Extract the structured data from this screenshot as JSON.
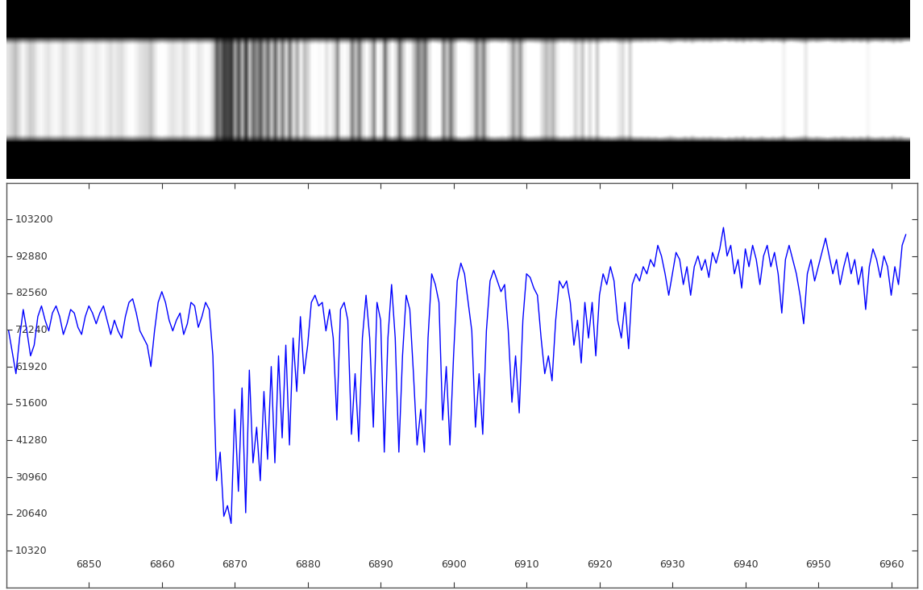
{
  "chart_data": {
    "type": "line",
    "color": "#0000ff",
    "grid": false,
    "xlim": [
      6838.7,
      6963.6
    ],
    "xticks": [
      6850,
      6860,
      6870,
      6880,
      6890,
      6900,
      6910,
      6920,
      6930,
      6940,
      6950,
      6960
    ],
    "ylim": [
      0,
      113500
    ],
    "yticks": [
      10320,
      20640,
      30960,
      41280,
      51600,
      61920,
      72240,
      82560,
      92880,
      103200
    ],
    "x": [
      6839,
      6839.5,
      6840,
      6840.5,
      6841,
      6841.5,
      6842,
      6842.5,
      6843,
      6843.5,
      6844,
      6844.5,
      6845,
      6845.5,
      6846,
      6846.5,
      6847,
      6847.5,
      6848,
      6848.5,
      6849,
      6849.5,
      6850,
      6850.5,
      6851,
      6851.5,
      6852,
      6852.5,
      6853,
      6853.5,
      6854,
      6854.5,
      6855,
      6855.5,
      6856,
      6856.5,
      6857,
      6857.5,
      6858,
      6858.5,
      6859,
      6859.5,
      6860,
      6860.5,
      6861,
      6861.5,
      6862,
      6862.5,
      6863,
      6863.5,
      6864,
      6864.5,
      6865,
      6865.5,
      6866,
      6866.5,
      6867,
      6867.5,
      6868,
      6868.5,
      6869,
      6869.5,
      6870,
      6870.5,
      6871,
      6871.5,
      6872,
      6872.5,
      6873,
      6873.5,
      6874,
      6874.5,
      6875,
      6875.5,
      6876,
      6876.5,
      6877,
      6877.5,
      6878,
      6878.5,
      6879,
      6879.5,
      6880,
      6880.5,
      6881,
      6881.5,
      6882,
      6882.5,
      6883,
      6883.5,
      6884,
      6884.5,
      6885,
      6885.5,
      6886,
      6886.5,
      6887,
      6887.5,
      6888,
      6888.5,
      6889,
      6889.5,
      6890,
      6890.5,
      6891,
      6891.5,
      6892,
      6892.5,
      6893,
      6893.5,
      6894,
      6894.5,
      6895,
      6895.5,
      6896,
      6896.5,
      6897,
      6897.5,
      6898,
      6898.5,
      6899,
      6899.5,
      6900,
      6900.5,
      6901,
      6901.5,
      6902,
      6902.5,
      6903,
      6903.5,
      6904,
      6904.5,
      6905,
      6905.5,
      6906,
      6906.5,
      6907,
      6907.5,
      6908,
      6908.5,
      6909,
      6909.5,
      6910,
      6910.5,
      6911,
      6911.5,
      6912,
      6912.5,
      6913,
      6913.5,
      6914,
      6914.5,
      6915,
      6915.5,
      6916,
      6916.5,
      6917,
      6917.5,
      6918,
      6918.5,
      6919,
      6919.5,
      6920,
      6920.5,
      6921,
      6921.5,
      6922,
      6922.5,
      6923,
      6923.5,
      6924,
      6924.5,
      6925,
      6925.5,
      6926,
      6926.5,
      6927,
      6927.5,
      6928,
      6928.5,
      6929,
      6929.5,
      6930,
      6930.5,
      6931,
      6931.5,
      6932,
      6932.5,
      6933,
      6933.5,
      6934,
      6934.5,
      6935,
      6935.5,
      6936,
      6936.5,
      6937,
      6937.5,
      6938,
      6938.5,
      6939,
      6939.5,
      6940,
      6940.5,
      6941,
      6941.5,
      6942,
      6942.5,
      6943,
      6943.5,
      6944,
      6944.5,
      6945,
      6945.5,
      6946,
      6946.5,
      6947,
      6947.5,
      6948,
      6948.5,
      6949,
      6949.5,
      6950,
      6950.5,
      6951,
      6951.5,
      6952,
      6952.5,
      6953,
      6953.5,
      6954,
      6954.5,
      6955,
      6955.5,
      6956,
      6956.5,
      6957,
      6957.5,
      6958,
      6958.5,
      6959,
      6959.5,
      6960,
      6960.5,
      6961,
      6961.5,
      6962
    ],
    "values": [
      72000,
      66000,
      60000,
      70000,
      78000,
      72000,
      65000,
      68000,
      76000,
      79000,
      75000,
      72000,
      77000,
      79000,
      76000,
      71000,
      74000,
      78000,
      77000,
      73000,
      71000,
      76000,
      79000,
      77000,
      74000,
      77000,
      79000,
      75000,
      71000,
      75000,
      72000,
      70000,
      76000,
      80000,
      81000,
      77000,
      72000,
      70000,
      68000,
      62000,
      72000,
      80000,
      83000,
      80000,
      75000,
      72000,
      75000,
      77000,
      71000,
      74000,
      80000,
      79000,
      73000,
      76000,
      80000,
      78000,
      65000,
      30000,
      38000,
      20000,
      23000,
      18000,
      50000,
      27000,
      56000,
      21000,
      61000,
      35000,
      45000,
      30000,
      55000,
      36000,
      62000,
      35000,
      65000,
      42000,
      68000,
      40000,
      70000,
      55000,
      76000,
      60000,
      68000,
      80000,
      82000,
      79000,
      80000,
      72000,
      78000,
      70000,
      47000,
      78000,
      80000,
      75000,
      43000,
      60000,
      41000,
      70000,
      82000,
      70000,
      45000,
      80000,
      75000,
      38000,
      70000,
      85000,
      70000,
      38000,
      65000,
      82000,
      78000,
      60000,
      40000,
      50000,
      38000,
      70000,
      88000,
      85000,
      80000,
      47000,
      62000,
      40000,
      65000,
      86000,
      91000,
      88000,
      80000,
      72000,
      45000,
      60000,
      43000,
      72000,
      86000,
      89000,
      86000,
      83000,
      85000,
      72000,
      52000,
      65000,
      49000,
      75000,
      88000,
      87000,
      84000,
      82000,
      70000,
      60000,
      65000,
      58000,
      75000,
      86000,
      84000,
      86000,
      80000,
      68000,
      75000,
      63000,
      80000,
      70000,
      80000,
      65000,
      82000,
      88000,
      85000,
      90000,
      86000,
      75000,
      70000,
      80000,
      67000,
      85000,
      88000,
      86000,
      90000,
      88000,
      92000,
      90000,
      96000,
      93000,
      88000,
      82000,
      88000,
      94000,
      92000,
      85000,
      90000,
      82000,
      90000,
      93000,
      89000,
      92000,
      87000,
      94000,
      91000,
      95000,
      101000,
      93000,
      96000,
      88000,
      92000,
      84000,
      95000,
      90000,
      96000,
      92000,
      85000,
      93000,
      96000,
      90000,
      94000,
      88000,
      77000,
      92000,
      96000,
      92000,
      88000,
      82000,
      74000,
      88000,
      92000,
      86000,
      90000,
      94000,
      98000,
      93000,
      88000,
      92000,
      85000,
      90000,
      94000,
      88000,
      92000,
      85000,
      90000,
      78000,
      90000,
      95000,
      92000,
      87000,
      93000,
      90000,
      82000,
      90000,
      85000,
      96000,
      99000
    ]
  }
}
